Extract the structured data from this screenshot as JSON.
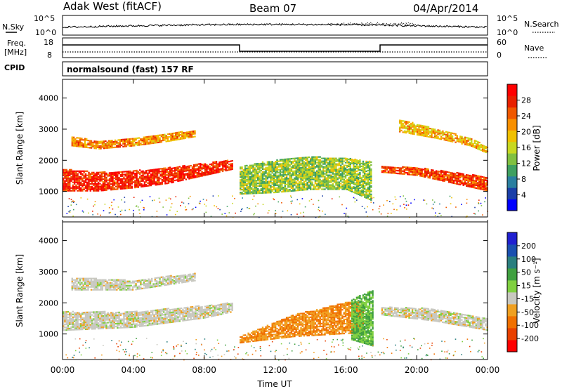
{
  "header": {
    "station": "Adak West (fitACF)",
    "beam": "Beam 07",
    "date": "04/Apr/2014"
  },
  "strip": {
    "nsky_label": "N.Sky",
    "nsearch_label": "N.Search",
    "nsky_ticks": [
      "10^5",
      "10^0"
    ],
    "nsearch_ticks": [
      "10^5",
      "10^0"
    ],
    "freq_label_1": "Freq.",
    "freq_label_2": "[MHz]",
    "freq_ticks": [
      "18",
      "8"
    ],
    "nave_label": "Nave",
    "nave_ticks": [
      "60",
      "0"
    ],
    "cpid_label": "CPID",
    "cpid_text": "normalsound (fast) 157 RF"
  },
  "colorbars": {
    "power": {
      "label": "Power [dB]",
      "ticks": [
        "28",
        "24",
        "20",
        "16",
        "12",
        "8",
        "4"
      ],
      "colors": [
        "#0000ff",
        "#1a3fa8",
        "#2a7fa0",
        "#3fa060",
        "#80c040",
        "#c8d820",
        "#f0c000",
        "#f89000",
        "#f05800",
        "#e82000",
        "#ff0000"
      ]
    },
    "velocity": {
      "label": "Velocity [m s⁻¹]",
      "ticks": [
        "200",
        "100",
        "50",
        "15",
        "-15",
        "-50",
        "-100",
        "-200"
      ],
      "colors": [
        "#ff0000",
        "#e84000",
        "#f07000",
        "#f0a020",
        "#c8c8c0",
        "#80d040",
        "#40a040",
        "#2a7f7f",
        "#1a50b0",
        "#2020d0"
      ]
    }
  },
  "axes": {
    "ylabel": "Slant Range [km]",
    "xlabel": "Time UT",
    "yticks": [
      "4000",
      "3000",
      "2000",
      "1000"
    ],
    "xticks": [
      "00:00",
      "04:00",
      "08:00",
      "12:00",
      "16:00",
      "20:00",
      "00:00"
    ]
  },
  "chart_data": [
    {
      "type": "heatmap",
      "title": "",
      "quantity": "Power [dB]",
      "xlabel": "",
      "ylabel": "Slant Range [km]",
      "xlim": [
        0,
        24
      ],
      "ylim": [
        180,
        4600
      ],
      "zlim": [
        0,
        32
      ],
      "features": [
        {
          "x": [
            0,
            2,
            4,
            6,
            8,
            9.6
          ],
          "y_low": [
            1000,
            1000,
            1100,
            1250,
            1500,
            1700
          ],
          "y_high": [
            1700,
            1600,
            1650,
            1750,
            1900,
            2000
          ],
          "power": 28
        },
        {
          "x": [
            0.5,
            2,
            4,
            6,
            7.5
          ],
          "y_low": [
            2450,
            2350,
            2450,
            2600,
            2750
          ],
          "y_high": [
            2750,
            2600,
            2700,
            2850,
            2950
          ],
          "power": 22
        },
        {
          "x": [
            10,
            12,
            14,
            16,
            17.4
          ],
          "y_low": [
            900,
            950,
            1050,
            1050,
            700
          ],
          "y_high": [
            1800,
            2000,
            2100,
            2050,
            1950
          ],
          "power": 14
        },
        {
          "x": [
            18,
            20,
            22,
            24
          ],
          "y_low": [
            1600,
            1500,
            1250,
            1000
          ],
          "y_high": [
            1800,
            1750,
            1600,
            1450
          ],
          "power": 26
        },
        {
          "x": [
            19,
            21,
            23,
            24
          ],
          "y_low": [
            2900,
            2700,
            2450,
            2200
          ],
          "y_high": [
            3300,
            3000,
            2700,
            2400
          ],
          "power": 20
        }
      ]
    },
    {
      "type": "heatmap",
      "title": "",
      "quantity": "Velocity [m s⁻¹]",
      "xlabel": "Time UT",
      "ylabel": "Slant Range [km]",
      "xlim": [
        0,
        24
      ],
      "ylim": [
        180,
        4600
      ],
      "zlim": [
        -200,
        200
      ],
      "features": [
        {
          "x": [
            0,
            4,
            8,
            9.6
          ],
          "y_low": [
            1100,
            1200,
            1500,
            1700
          ],
          "y_high": [
            1700,
            1700,
            1900,
            2000
          ],
          "velocity": 0
        },
        {
          "x": [
            0.5,
            4,
            7.5
          ],
          "y_low": [
            2400,
            2400,
            2700
          ],
          "y_high": [
            2800,
            2700,
            2950
          ],
          "velocity": 0
        },
        {
          "x": [
            10,
            13,
            16,
            17
          ],
          "y_low": [
            700,
            900,
            1000,
            1000
          ],
          "y_high": [
            900,
            1600,
            2000,
            2000
          ],
          "velocity": -50
        },
        {
          "x": [
            16.3,
            17.5
          ],
          "y_low": [
            800,
            600
          ],
          "y_high": [
            2100,
            2400
          ],
          "velocity": 50
        },
        {
          "x": [
            18,
            21,
            24
          ],
          "y_low": [
            1600,
            1400,
            1100
          ],
          "y_high": [
            1850,
            1800,
            1500
          ],
          "velocity": 0
        }
      ]
    }
  ]
}
